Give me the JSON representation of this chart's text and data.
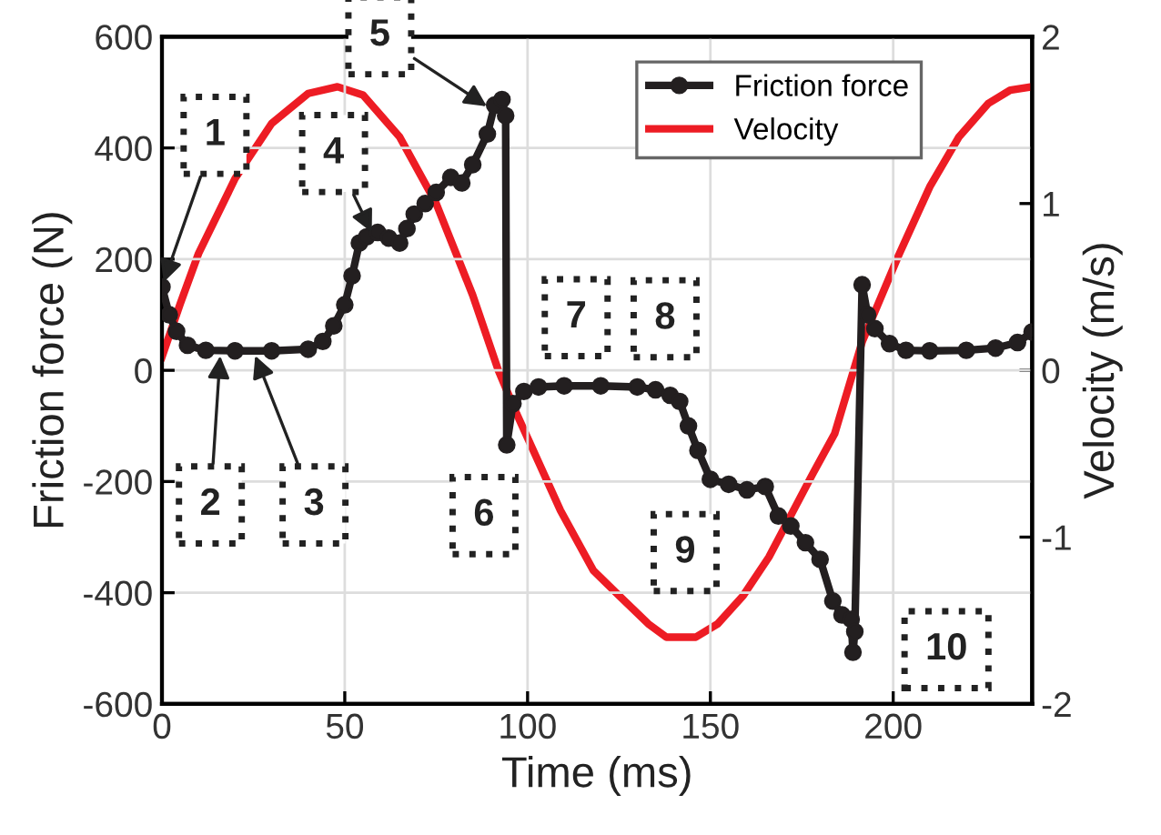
{
  "chart_data": {
    "type": "line",
    "xlabel": "Time (ms)",
    "ylabel": "Friction force (N)",
    "y2label": "Velocity (m/s)",
    "xlim": [
      0,
      238
    ],
    "xticks": [
      0,
      50,
      100,
      150,
      200
    ],
    "ylim": [
      -600,
      600
    ],
    "yticks": [
      -600,
      -400,
      -200,
      0,
      200,
      400,
      600
    ],
    "y2lim": [
      -2,
      2
    ],
    "y2ticks": [
      -2,
      -1,
      0,
      1,
      2
    ],
    "grid": true,
    "legend": "top right",
    "line_style": "solid",
    "series": [
      {
        "name": "Friction force",
        "color": "#231f20",
        "marker": "circle",
        "x": [
          0,
          2,
          4,
          7,
          12,
          20,
          30,
          40,
          44,
          47,
          50,
          52,
          54,
          56,
          59,
          62,
          65,
          67,
          69,
          72,
          75,
          79,
          82,
          85,
          89,
          91,
          93,
          94,
          94.3,
          96,
          99,
          103,
          110,
          120,
          130,
          135,
          139,
          141.6,
          144,
          146.6,
          150,
          155,
          160,
          165,
          168.6,
          172,
          176,
          180,
          183.5,
          186,
          188.5,
          189,
          189.5,
          191.5,
          193,
          195,
          199,
          203.5,
          210,
          220,
          228,
          234,
          238
        ],
        "values": [
          150,
          100,
          70,
          45,
          36,
          35,
          35,
          38,
          52,
          80,
          118,
          170,
          229,
          240,
          248,
          238,
          229,
          255,
          281,
          300,
          320,
          347,
          337,
          370,
          425,
          477,
          487,
          458,
          -134,
          -60,
          -38,
          -30,
          -28,
          -28,
          -30,
          -35,
          -45,
          -56,
          -100,
          -144,
          -196,
          -205,
          -215,
          -209,
          -262,
          -280,
          -310,
          -340,
          -415,
          -440,
          -448,
          -507,
          -470,
          154,
          100,
          75,
          48,
          36,
          35,
          36,
          40,
          50,
          69
        ]
      },
      {
        "name": "Velocity",
        "color": "#ed1c24",
        "marker": "none",
        "axis": "y2",
        "x": [
          0,
          5,
          10,
          20,
          30,
          40,
          48,
          55,
          65,
          75,
          85,
          92,
          97,
          109,
          118,
          125,
          133,
          138,
          146,
          152,
          159,
          166,
          172,
          178,
          184,
          191.5,
          201.5,
          210,
          218,
          226,
          232,
          238
        ],
        "values": [
          0.08,
          0.4,
          0.7,
          1.15,
          1.48,
          1.66,
          1.7,
          1.65,
          1.4,
          1.0,
          0.45,
          0.0,
          -0.26,
          -0.84,
          -1.2,
          -1.35,
          -1.52,
          -1.6,
          -1.6,
          -1.52,
          -1.35,
          -1.12,
          -0.87,
          -0.62,
          -0.38,
          0.17,
          0.69,
          1.1,
          1.4,
          1.6,
          1.68,
          1.7
        ]
      }
    ],
    "annotations": [
      {
        "text": "1",
        "x": 0,
        "y": 150
      },
      {
        "text": "2",
        "x": 16,
        "y": 35
      },
      {
        "text": "3",
        "x": 25,
        "y": 35
      },
      {
        "text": "4",
        "x": 58,
        "y": 240
      },
      {
        "text": "5",
        "x": 90,
        "y": 470
      },
      {
        "text": "6",
        "x": 94.3,
        "y": -134
      },
      {
        "text": "7",
        "x": 105,
        "y": -28
      },
      {
        "text": "8",
        "x": 130,
        "y": -30
      },
      {
        "text": "9",
        "x": 150,
        "y": -196
      },
      {
        "text": "10",
        "x": 189,
        "y": -507
      }
    ]
  }
}
